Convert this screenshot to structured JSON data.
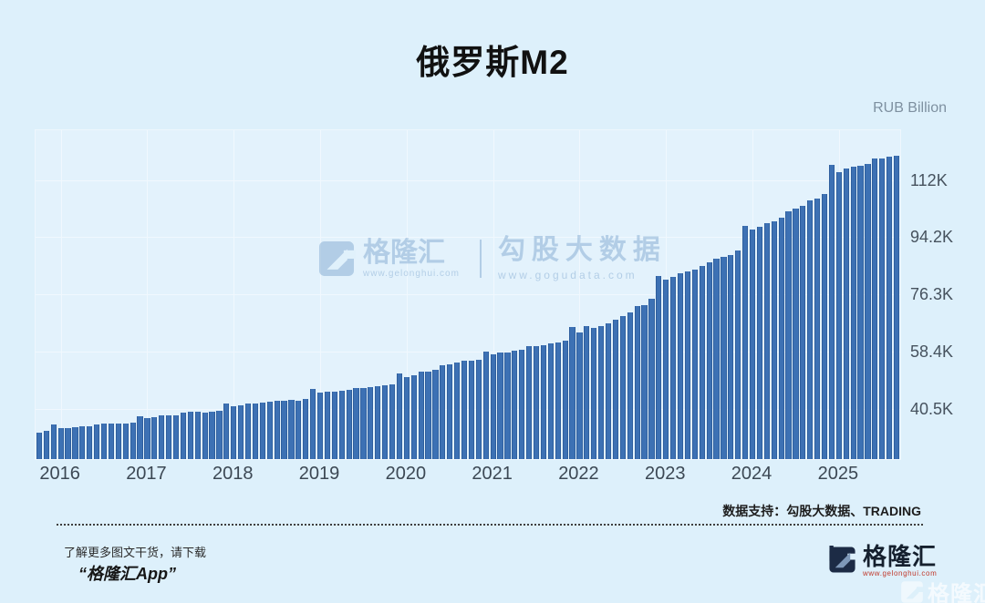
{
  "page": {
    "title": "俄罗斯M2",
    "unit_label": "RUB Billion"
  },
  "watermark": {
    "brand": "格隆汇",
    "brand_url": "www.gelonghui.com",
    "product": "勾股大数据",
    "product_url": "www.gogudata.com"
  },
  "footer": {
    "data_support": "数据支持：勾股大数据、TRADING",
    "promo_line1": "了解更多图文干货，请下载",
    "promo_line2": "“格隆汇App”",
    "brand_name": "格隆汇",
    "brand_url": "www.gelonghui.com",
    "corner_brand": "格隆汇"
  },
  "colors": {
    "background": "#ddf0fb",
    "plot_background": "#e3f2fc",
    "bar": "#3d71b4",
    "bar_edge": "#2f5f9e",
    "gridline": "#f0f8fe",
    "tick_text": "#46525e",
    "unit_text": "#7e90a0",
    "brand_navy": "#1c2b45",
    "brand_red": "#c0392b",
    "watermark_blue": "#6f9cc9"
  },
  "chart_data": {
    "type": "bar",
    "title": "俄罗斯M2",
    "ylabel": "RUB Billion",
    "xlabel": "",
    "legend": null,
    "grid": true,
    "start_month": "2015-10",
    "end_month": "2025-09",
    "first_january_index": 3,
    "x_tick_labels": [
      "2016",
      "2017",
      "2018",
      "2019",
      "2020",
      "2021",
      "2022",
      "2023",
      "2024",
      "2025"
    ],
    "y_ticks": [
      {
        "value": 40500,
        "label": "40.5K"
      },
      {
        "value": 58400,
        "label": "58.4K"
      },
      {
        "value": 76300,
        "label": "76.3K"
      },
      {
        "value": 94200,
        "label": "94.2K"
      },
      {
        "value": 112100,
        "label": "112K"
      }
    ],
    "ylim": [
      25000,
      128000
    ],
    "series": [
      {
        "name": "俄罗斯M2 (RUB Billion)",
        "values": [
          33400,
          33800,
          35800,
          34600,
          34700,
          34900,
          35300,
          35400,
          35900,
          36100,
          36200,
          36100,
          36200,
          36400,
          38400,
          37800,
          38000,
          38600,
          38700,
          38800,
          39600,
          39800,
          39900,
          39600,
          39700,
          40100,
          42400,
          41600,
          41700,
          42400,
          42400,
          42700,
          43100,
          43400,
          43400,
          43600,
          43400,
          43800,
          47100,
          45900,
          46100,
          46100,
          46400,
          46700,
          47300,
          47400,
          47500,
          47800,
          48100,
          48300,
          51700,
          50600,
          51300,
          52300,
          52500,
          53100,
          54300,
          54800,
          55300,
          55800,
          55900,
          56200,
          58700,
          57700,
          58300,
          58300,
          59100,
          59200,
          60400,
          60300,
          60800,
          61300,
          61500,
          62200,
          66300,
          64800,
          66600,
          66000,
          66800,
          67400,
          68600,
          69700,
          71000,
          72900,
          73300,
          75200,
          82400,
          81300,
          82100,
          83200,
          83700,
          84300,
          85600,
          86500,
          87900,
          88400,
          88900,
          90300,
          98000,
          96900,
          97800,
          98900,
          99400,
          100700,
          102700,
          103400,
          104400,
          106100,
          106700,
          108100,
          117300,
          114800,
          116000,
          116500,
          116900,
          117500,
          119100,
          119100,
          119600,
          120100
        ]
      }
    ]
  }
}
